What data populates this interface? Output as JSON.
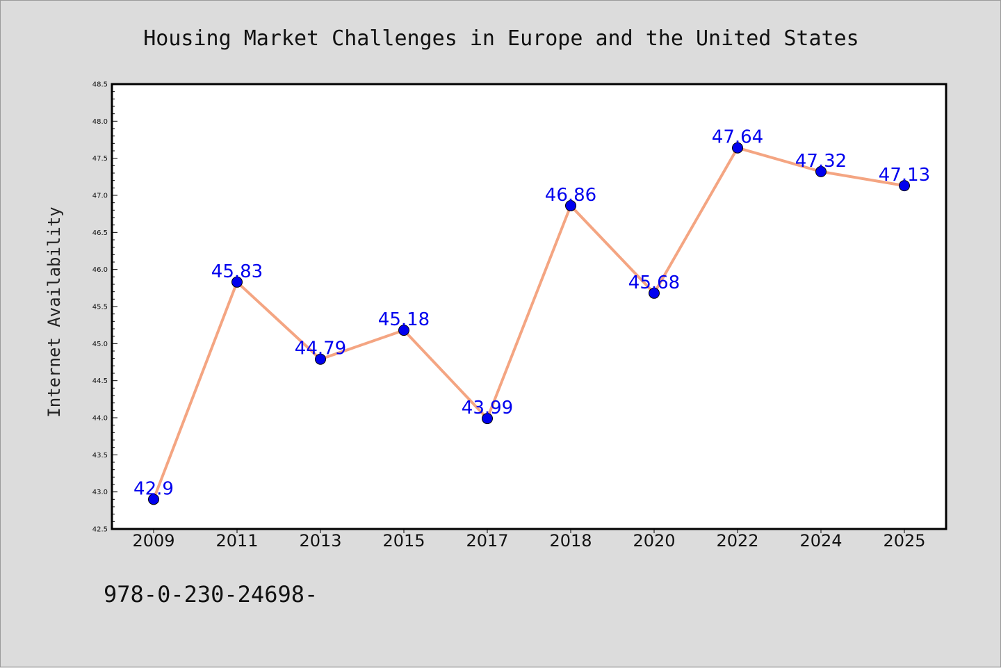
{
  "chart_data": {
    "type": "line",
    "title": "Housing Market Challenges in Europe and the United States",
    "xlabel": "",
    "ylabel": "Internet Availability",
    "categories": [
      "2009",
      "2011",
      "2013",
      "2015",
      "2017",
      "2018",
      "2020",
      "2022",
      "2024",
      "2025"
    ],
    "values": [
      42.9,
      45.83,
      44.79,
      45.18,
      43.99,
      46.86,
      45.68,
      47.64,
      47.32,
      47.13
    ],
    "data_labels": [
      "42.9",
      "45.83",
      "44.79",
      "45.18",
      "43.99",
      "46.86",
      "45.68",
      "47.64",
      "47.32",
      "47.13"
    ],
    "ylim": [
      42.5,
      48.5
    ],
    "yticks": [
      "42.5",
      "43.0",
      "43.5",
      "44.0",
      "44.5",
      "45.0",
      "45.5",
      "46.0",
      "46.5",
      "47.0",
      "47.5",
      "48.0",
      "48.5"
    ],
    "grid": false,
    "legend": "none",
    "line_color": "#f4a582",
    "marker_color": "#0000ee",
    "label_color": "#0000ee"
  },
  "footer": {
    "code": "978-0-230-24698-"
  }
}
